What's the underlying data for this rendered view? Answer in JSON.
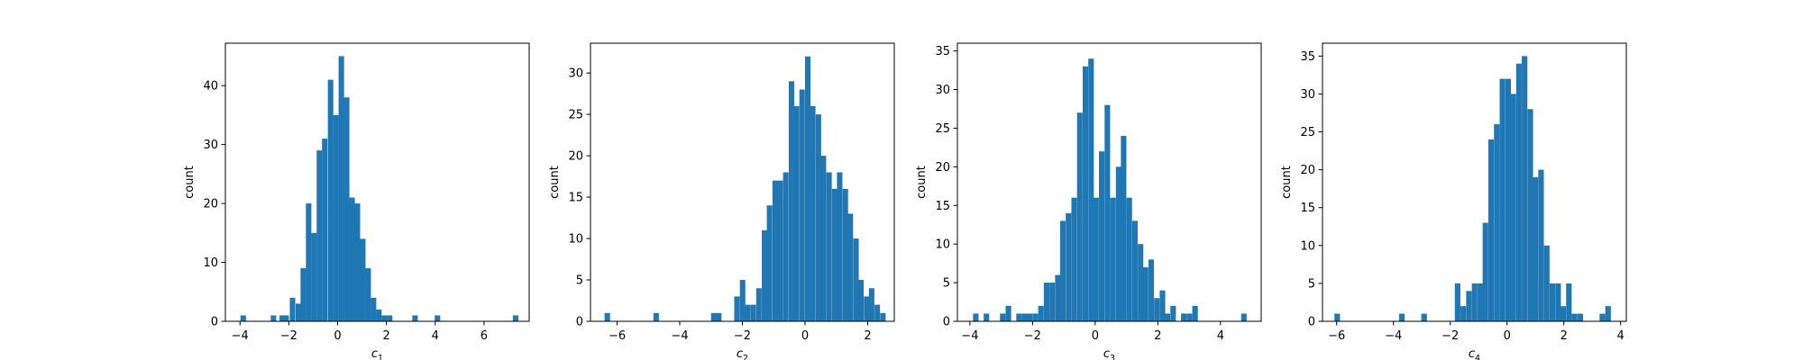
{
  "colors": {
    "bar": "#1f77b4",
    "axes": "#000000",
    "background": "#ffffff"
  },
  "chart_data": [
    {
      "type": "bar",
      "xlabel": "c",
      "xlabel_subscript": "1",
      "ylabel": "count",
      "xlim": [
        -4.6,
        7.85
      ],
      "ylim": [
        0,
        47.2
      ],
      "xticks": [
        -4,
        -2,
        0,
        2,
        4,
        6
      ],
      "yticks": [
        0,
        10,
        20,
        30,
        40
      ],
      "grid": false,
      "bin_width": 0.2232,
      "bins": [
        [
          -3.98,
          1
        ],
        [
          -2.74,
          1
        ],
        [
          -2.38,
          1
        ],
        [
          -2.22,
          1
        ],
        [
          -1.96,
          4
        ],
        [
          -1.72,
          3
        ],
        [
          -1.52,
          9
        ],
        [
          -1.3,
          20
        ],
        [
          -1.08,
          15
        ],
        [
          -0.86,
          29
        ],
        [
          -0.64,
          31
        ],
        [
          -0.4,
          41
        ],
        [
          -0.18,
          35
        ],
        [
          0.04,
          45
        ],
        [
          0.26,
          38
        ],
        [
          0.48,
          21
        ],
        [
          0.7,
          20
        ],
        [
          0.92,
          14
        ],
        [
          1.14,
          9
        ],
        [
          1.36,
          4
        ],
        [
          1.58,
          2
        ],
        [
          1.8,
          1
        ],
        [
          2.02,
          1
        ],
        [
          3.06,
          1
        ],
        [
          3.98,
          1
        ],
        [
          7.18,
          1
        ]
      ]
    },
    {
      "type": "bar",
      "xlabel": "c",
      "xlabel_subscript": "2",
      "ylabel": "count",
      "xlim": [
        -6.85,
        2.85
      ],
      "ylim": [
        0,
        33.6
      ],
      "xticks": [
        -6,
        -4,
        -2,
        0,
        2
      ],
      "yticks": [
        0,
        5,
        10,
        15,
        20,
        25,
        30
      ],
      "grid": false,
      "bin_width": 0.174,
      "bins": [
        [
          -6.4,
          1
        ],
        [
          -4.84,
          1
        ],
        [
          -3.0,
          1
        ],
        [
          -2.84,
          1
        ],
        [
          -2.26,
          3
        ],
        [
          -2.08,
          5
        ],
        [
          -1.92,
          2
        ],
        [
          -1.74,
          2
        ],
        [
          -1.56,
          4
        ],
        [
          -1.38,
          11
        ],
        [
          -1.22,
          14
        ],
        [
          -1.04,
          17
        ],
        [
          -0.88,
          17
        ],
        [
          -0.7,
          18
        ],
        [
          -0.52,
          29
        ],
        [
          -0.36,
          26
        ],
        [
          -0.18,
          28
        ],
        [
          0.0,
          32
        ],
        [
          0.16,
          26
        ],
        [
          0.34,
          25
        ],
        [
          0.5,
          20
        ],
        [
          0.68,
          18
        ],
        [
          0.86,
          16
        ],
        [
          1.02,
          18
        ],
        [
          1.2,
          16
        ],
        [
          1.36,
          13
        ],
        [
          1.54,
          10
        ],
        [
          1.7,
          5
        ],
        [
          1.88,
          3
        ],
        [
          2.04,
          4
        ],
        [
          2.22,
          2
        ],
        [
          2.4,
          1
        ]
      ]
    },
    {
      "type": "bar",
      "xlabel": "c",
      "xlabel_subscript": "3",
      "ylabel": "count",
      "xlim": [
        -4.4,
        5.3
      ],
      "ylim": [
        0,
        36.0
      ],
      "xticks": [
        -4,
        -2,
        0,
        2,
        4
      ],
      "yticks": [
        0,
        5,
        10,
        15,
        20,
        25,
        30,
        35
      ],
      "grid": false,
      "bin_width": 0.176,
      "bins": [
        [
          -3.9,
          1
        ],
        [
          -3.56,
          1
        ],
        [
          -3.04,
          1
        ],
        [
          -2.86,
          2
        ],
        [
          -2.52,
          1
        ],
        [
          -2.34,
          1
        ],
        [
          -2.18,
          1
        ],
        [
          -2.0,
          1
        ],
        [
          -1.82,
          2
        ],
        [
          -1.64,
          5
        ],
        [
          -1.46,
          5
        ],
        [
          -1.28,
          6
        ],
        [
          -1.12,
          13
        ],
        [
          -0.94,
          14
        ],
        [
          -0.76,
          16
        ],
        [
          -0.58,
          27
        ],
        [
          -0.4,
          33
        ],
        [
          -0.22,
          34
        ],
        [
          -0.06,
          16
        ],
        [
          0.12,
          22
        ],
        [
          0.3,
          28
        ],
        [
          0.48,
          16
        ],
        [
          0.66,
          20
        ],
        [
          0.82,
          24
        ],
        [
          1.0,
          16
        ],
        [
          1.18,
          13
        ],
        [
          1.36,
          10
        ],
        [
          1.52,
          7
        ],
        [
          1.7,
          8
        ],
        [
          1.88,
          3
        ],
        [
          2.06,
          4
        ],
        [
          2.22,
          1
        ],
        [
          2.4,
          2
        ],
        [
          2.74,
          1
        ],
        [
          2.92,
          1
        ],
        [
          3.1,
          2
        ],
        [
          4.66,
          1
        ]
      ]
    },
    {
      "type": "bar",
      "xlabel": "c",
      "xlabel_subscript": "4",
      "ylabel": "count",
      "xlim": [
        -6.5,
        4.2
      ],
      "ylim": [
        0,
        36.7
      ],
      "xticks": [
        -6,
        -4,
        -2,
        0,
        2,
        4
      ],
      "yticks": [
        0,
        5,
        10,
        15,
        20,
        25,
        30,
        35
      ],
      "grid": false,
      "bin_width": 0.1955,
      "bins": [
        [
          -6.08,
          1
        ],
        [
          -3.8,
          1
        ],
        [
          -3.02,
          1
        ],
        [
          -1.84,
          5
        ],
        [
          -1.64,
          2
        ],
        [
          -1.44,
          4
        ],
        [
          -1.24,
          5
        ],
        [
          -1.04,
          5
        ],
        [
          -0.86,
          13
        ],
        [
          -0.66,
          24
        ],
        [
          -0.46,
          26
        ],
        [
          -0.26,
          32
        ],
        [
          -0.06,
          32
        ],
        [
          0.12,
          30
        ],
        [
          0.32,
          34
        ],
        [
          0.52,
          35
        ],
        [
          0.72,
          28
        ],
        [
          0.9,
          19
        ],
        [
          1.1,
          20
        ],
        [
          1.3,
          10
        ],
        [
          1.5,
          5
        ],
        [
          1.7,
          5
        ],
        [
          1.88,
          2
        ],
        [
          2.08,
          5
        ],
        [
          2.28,
          1
        ],
        [
          2.48,
          1
        ],
        [
          3.26,
          1
        ],
        [
          3.46,
          2
        ]
      ]
    }
  ]
}
